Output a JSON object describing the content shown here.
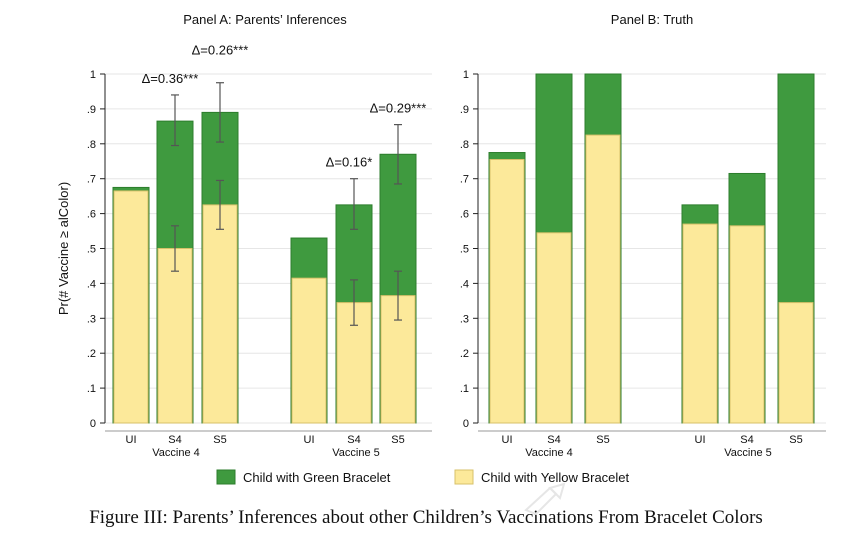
{
  "caption": "Figure III: Parents’ Inferences about other Children’s Vaccinations From Bracelet Colors",
  "colors": {
    "green": "#3f9a3f",
    "green_edge": "#2c7d2c",
    "yellow": "#fce99a",
    "yellow_edge": "#d7c16a",
    "grid": "#e6e6e6",
    "axis": "#222222"
  },
  "legend": [
    {
      "label": "Child with Green Bracelet",
      "color": "#3f9a3f"
    },
    {
      "label": "Child with Yellow Bracelet",
      "color": "#fce99a"
    }
  ],
  "chart_data": [
    {
      "type": "bar",
      "title": "Panel A: Parents’ Inferences",
      "ylabel": "Pr(# Vaccine ≥ alColor)",
      "ylim": [
        0,
        1
      ],
      "yticks": [
        "0",
        ".1",
        ".2",
        ".3",
        ".4",
        ".5",
        ".6",
        ".7",
        ".8",
        ".9",
        "1"
      ],
      "stacked_overlay": true,
      "groups": [
        {
          "name": "Vaccine 4",
          "categories": [
            "UI",
            "S4",
            "S5"
          ],
          "series": [
            {
              "name": "Child with Green Bracelet",
              "values": [
                0.675,
                0.865,
                0.89
              ],
              "ci": [
                null,
                [
                  0.795,
                  0.94
                ],
                [
                  0.805,
                  0.975
                ]
              ]
            },
            {
              "name": "Child with Yellow Bracelet",
              "values": [
                0.665,
                0.5,
                0.625
              ],
              "ci": [
                null,
                [
                  0.435,
                  0.565
                ],
                [
                  0.555,
                  0.695
                ]
              ]
            }
          ],
          "annotations": [
            {
              "text": "Δ=0.36***",
              "category": "S4"
            },
            {
              "text": "Δ=0.26***",
              "category": "S5"
            }
          ]
        },
        {
          "name": "Vaccine 5",
          "categories": [
            "UI",
            "S4",
            "S5"
          ],
          "series": [
            {
              "name": "Child with Green Bracelet",
              "values": [
                0.53,
                0.625,
                0.77
              ],
              "ci": [
                null,
                [
                  0.555,
                  0.7
                ],
                [
                  0.685,
                  0.855
                ]
              ]
            },
            {
              "name": "Child with Yellow Bracelet",
              "values": [
                0.415,
                0.345,
                0.365
              ],
              "ci": [
                null,
                [
                  0.28,
                  0.41
                ],
                [
                  0.295,
                  0.435
                ]
              ]
            }
          ],
          "annotations": [
            {
              "text": "Δ=0.16*",
              "category": "S4"
            },
            {
              "text": "Δ=0.29***",
              "category": "S5"
            }
          ]
        }
      ]
    },
    {
      "type": "bar",
      "title": "Panel B: Truth",
      "ylabel": "",
      "ylim": [
        0,
        1
      ],
      "yticks": [
        "0",
        ".1",
        ".2",
        ".3",
        ".4",
        ".5",
        ".6",
        ".7",
        ".8",
        ".9",
        "1"
      ],
      "stacked_overlay": true,
      "groups": [
        {
          "name": "Vaccine 4",
          "categories": [
            "UI",
            "S4",
            "S5"
          ],
          "series": [
            {
              "name": "Child with Green Bracelet",
              "values": [
                0.775,
                1.0,
                1.0
              ]
            },
            {
              "name": "Child with Yellow Bracelet",
              "values": [
                0.755,
                0.545,
                0.825
              ]
            }
          ],
          "annotations": []
        },
        {
          "name": "Vaccine 5",
          "categories": [
            "UI",
            "S4",
            "S5"
          ],
          "series": [
            {
              "name": "Child with Green Bracelet",
              "values": [
                0.625,
                0.715,
                1.0
              ]
            },
            {
              "name": "Child with Yellow Bracelet",
              "values": [
                0.57,
                0.565,
                0.345
              ]
            }
          ],
          "annotations": []
        }
      ]
    }
  ]
}
